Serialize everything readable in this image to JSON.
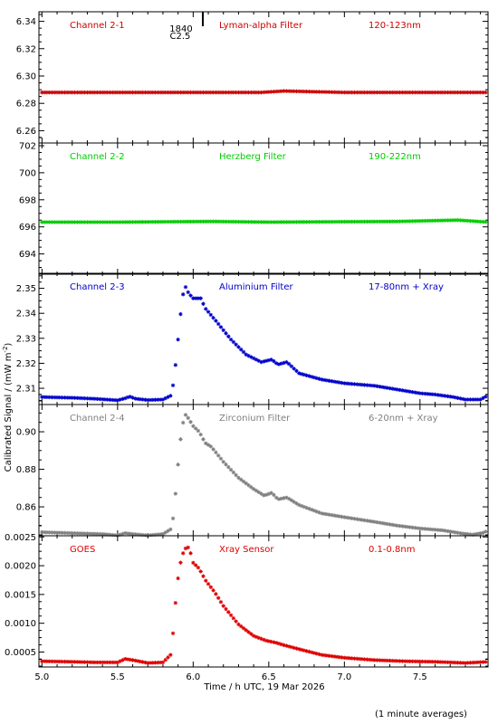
{
  "chart_data": {
    "type": "scatter",
    "xlabel": "Time / h UTC, 19 Mar 2026",
    "ylabel": "Calibrated Signal / (mW m",
    "ylabel_sup": "-2",
    "ylabel_end": ")",
    "footnote": "(1 minute averages)",
    "xlim": [
      4.98,
      7.95
    ],
    "xticks": [
      "5.0",
      "5.5",
      "6.0",
      "6.5",
      "7.0",
      "7.5"
    ],
    "marker": {
      "time_label": "1840",
      "class_label": "C2.5",
      "x": 5.92
    },
    "panels": [
      {
        "channel": "Channel 2-1",
        "filter": "Lyman-alpha Filter",
        "band": "120-123nm",
        "color": "#cc0000",
        "ylim": [
          6.251,
          6.347
        ],
        "yticks": [
          "6.26",
          "6.28",
          "6.30",
          "6.32",
          "6.34"
        ],
        "ytick_values": [
          6.26,
          6.28,
          6.3,
          6.32,
          6.34
        ],
        "points": [
          [
            5.0,
            6.288
          ],
          [
            5.5,
            6.288
          ],
          [
            6.0,
            6.288
          ],
          [
            6.45,
            6.288
          ],
          [
            6.6,
            6.289
          ],
          [
            7.0,
            6.288
          ],
          [
            7.5,
            6.288
          ],
          [
            7.95,
            6.288
          ]
        ]
      },
      {
        "channel": "Channel 2-2",
        "filter": "Herzberg Filter",
        "band": "190-222nm",
        "color": "#00cc00",
        "ylim": [
          692.5,
          702.2
        ],
        "yticks": [
          "694",
          "696",
          "698",
          "700",
          "702"
        ],
        "ytick_values": [
          694,
          696,
          698,
          700,
          702
        ],
        "points": [
          [
            5.0,
            696.35
          ],
          [
            5.5,
            696.35
          ],
          [
            6.12,
            696.4
          ],
          [
            6.5,
            696.35
          ],
          [
            7.35,
            696.4
          ],
          [
            7.75,
            696.5
          ],
          [
            7.95,
            696.35
          ]
        ]
      },
      {
        "channel": "Channel 2-3",
        "filter": "Aluminium Filter",
        "band": "17-80nm + Xray",
        "color": "#0000cc",
        "ylim": [
          2.3035,
          2.356
        ],
        "yticks": [
          "2.31",
          "2.32",
          "2.33",
          "2.34",
          "2.35"
        ],
        "ytick_values": [
          2.31,
          2.32,
          2.33,
          2.34,
          2.35
        ],
        "points": [
          [
            5.0,
            2.3065
          ],
          [
            5.2,
            2.3062
          ],
          [
            5.35,
            2.3058
          ],
          [
            5.5,
            2.3052
          ],
          [
            5.55,
            2.306
          ],
          [
            5.58,
            2.3067
          ],
          [
            5.62,
            2.3058
          ],
          [
            5.7,
            2.3053
          ],
          [
            5.8,
            2.3055
          ],
          [
            5.85,
            2.307
          ],
          [
            5.87,
            2.312
          ],
          [
            5.89,
            2.323
          ],
          [
            5.91,
            2.336
          ],
          [
            5.93,
            2.347
          ],
          [
            5.95,
            2.3505
          ],
          [
            5.97,
            2.348
          ],
          [
            6.0,
            2.346
          ],
          [
            6.05,
            2.346
          ],
          [
            6.08,
            2.342
          ],
          [
            6.15,
            2.337
          ],
          [
            6.25,
            2.3295
          ],
          [
            6.35,
            2.3235
          ],
          [
            6.45,
            2.3205
          ],
          [
            6.52,
            2.3215
          ],
          [
            6.56,
            2.3195
          ],
          [
            6.62,
            2.3205
          ],
          [
            6.7,
            2.316
          ],
          [
            6.85,
            2.3135
          ],
          [
            7.0,
            2.312
          ],
          [
            7.2,
            2.311
          ],
          [
            7.35,
            2.3095
          ],
          [
            7.5,
            2.308
          ],
          [
            7.6,
            2.3075
          ],
          [
            7.72,
            2.3065
          ],
          [
            7.8,
            2.3055
          ],
          [
            7.9,
            2.3055
          ],
          [
            7.95,
            2.3072
          ]
        ]
      },
      {
        "channel": "Channel 2-4",
        "filter": "Zirconium Filter",
        "band": "6-20nm + Xray",
        "color": "#808080",
        "ylim": [
          0.8446,
          0.9145
        ],
        "yticks": [
          "0.86",
          "0.88",
          "0.90"
        ],
        "ytick_values": [
          0.86,
          0.88,
          0.9
        ],
        "points": [
          [
            5.0,
            0.8465
          ],
          [
            5.2,
            0.846
          ],
          [
            5.4,
            0.8455
          ],
          [
            5.5,
            0.8448
          ],
          [
            5.55,
            0.846
          ],
          [
            5.6,
            0.8455
          ],
          [
            5.7,
            0.8448
          ],
          [
            5.8,
            0.8455
          ],
          [
            5.85,
            0.848
          ],
          [
            5.87,
            0.855
          ],
          [
            5.89,
            0.873
          ],
          [
            5.91,
            0.892
          ],
          [
            5.93,
            0.904
          ],
          [
            5.95,
            0.909
          ],
          [
            5.97,
            0.907
          ],
          [
            6.0,
            0.903
          ],
          [
            6.04,
            0.9
          ],
          [
            6.08,
            0.894
          ],
          [
            6.12,
            0.892
          ],
          [
            6.2,
            0.884
          ],
          [
            6.3,
            0.8755
          ],
          [
            6.4,
            0.8695
          ],
          [
            6.47,
            0.866
          ],
          [
            6.52,
            0.8675
          ],
          [
            6.56,
            0.864
          ],
          [
            6.62,
            0.865
          ],
          [
            6.7,
            0.861
          ],
          [
            6.85,
            0.8565
          ],
          [
            7.0,
            0.8545
          ],
          [
            7.2,
            0.852
          ],
          [
            7.35,
            0.85
          ],
          [
            7.5,
            0.8485
          ],
          [
            7.65,
            0.8475
          ],
          [
            7.78,
            0.8458
          ],
          [
            7.85,
            0.8452
          ],
          [
            7.92,
            0.8462
          ],
          [
            7.95,
            0.8475
          ]
        ]
      },
      {
        "channel": "GOES",
        "filter": "Xray Sensor",
        "band": "0.1-0.8nm",
        "color": "#dd0000",
        "ylim": [
          0.00024,
          0.00252
        ],
        "yticks": [
          "0.0005",
          "0.0010",
          "0.0015",
          "0.0020",
          "0.0025"
        ],
        "ytick_values": [
          0.0005,
          0.001,
          0.0015,
          0.002,
          0.0025
        ],
        "points": [
          [
            5.0,
            0.00034
          ],
          [
            5.2,
            0.00033
          ],
          [
            5.35,
            0.00032
          ],
          [
            5.5,
            0.00032
          ],
          [
            5.55,
            0.00038
          ],
          [
            5.6,
            0.00036
          ],
          [
            5.7,
            0.00031
          ],
          [
            5.8,
            0.00032
          ],
          [
            5.85,
            0.00045
          ],
          [
            5.87,
            0.0009
          ],
          [
            5.89,
            0.00158
          ],
          [
            5.91,
            0.00198
          ],
          [
            5.93,
            0.0022
          ],
          [
            5.96,
            0.00235
          ],
          [
            5.98,
            0.00225
          ],
          [
            6.0,
            0.00205
          ],
          [
            6.04,
            0.00195
          ],
          [
            6.08,
            0.00175
          ],
          [
            6.14,
            0.00155
          ],
          [
            6.2,
            0.0013
          ],
          [
            6.3,
            0.00098
          ],
          [
            6.4,
            0.00078
          ],
          [
            6.48,
            0.0007
          ],
          [
            6.55,
            0.00066
          ],
          [
            6.6,
            0.00062
          ],
          [
            6.7,
            0.00055
          ],
          [
            6.85,
            0.00045
          ],
          [
            7.0,
            0.0004
          ],
          [
            7.2,
            0.00036
          ],
          [
            7.4,
            0.00034
          ],
          [
            7.6,
            0.00033
          ],
          [
            7.8,
            0.00031
          ],
          [
            7.95,
            0.00033
          ]
        ]
      }
    ]
  }
}
